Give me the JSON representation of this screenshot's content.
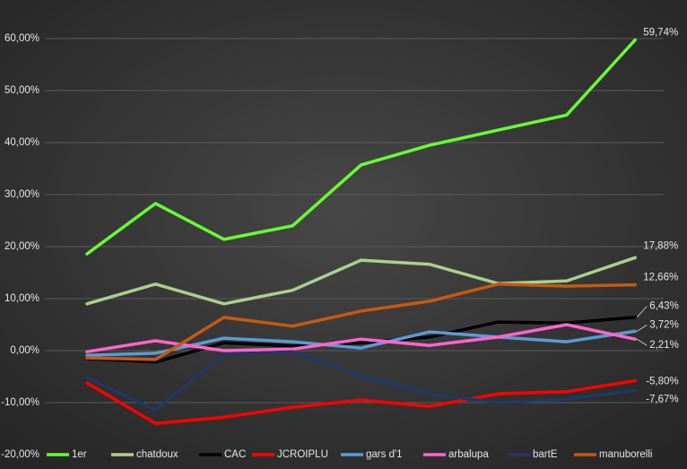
{
  "chart_data": {
    "type": "line",
    "ylim": [
      -20,
      60
    ],
    "yticks": [
      {
        "value": -20,
        "label": "-20,00%"
      },
      {
        "value": -10,
        "label": "-10,00%"
      },
      {
        "value": 0,
        "label": "0,00%"
      },
      {
        "value": 10,
        "label": "10,00%"
      },
      {
        "value": 20,
        "label": "20,00%"
      },
      {
        "value": 30,
        "label": "30,00%"
      },
      {
        "value": 40,
        "label": "40,00%"
      },
      {
        "value": 50,
        "label": "50,00%"
      },
      {
        "value": 60,
        "label": "60,00%"
      }
    ],
    "grid": true,
    "legend": "bottom",
    "series": [
      {
        "name": "1er",
        "color": "#66ff33",
        "values": [
          18.6,
          28.3,
          21.4,
          24.0,
          35.7,
          39.5,
          42.4,
          45.3,
          59.74
        ],
        "value_labels": [
          null,
          null,
          null,
          null,
          null,
          null,
          null,
          null,
          "59,74%"
        ]
      },
      {
        "name": "chatdoux",
        "color": "#a9d18e",
        "values": [
          9.0,
          12.8,
          9.0,
          11.6,
          17.4,
          16.6,
          12.9,
          13.4,
          17.88
        ],
        "value_labels": [
          null,
          null,
          null,
          null,
          null,
          null,
          null,
          null,
          "17,88%"
        ]
      },
      {
        "name": "CAC",
        "color": "#000000",
        "values": [
          -1.5,
          -2.2,
          1.5,
          0.9,
          1.5,
          2.6,
          5.5,
          5.3,
          6.43
        ],
        "value_labels": [
          null,
          null,
          null,
          null,
          null,
          null,
          null,
          null,
          "6,43%"
        ]
      },
      {
        "name": "JCROIPLU",
        "color": "#ff0000",
        "values": [
          -6.2,
          -14.0,
          -12.8,
          -10.9,
          -9.5,
          -10.7,
          -8.3,
          -7.9,
          -5.8
        ],
        "value_labels": [
          null,
          null,
          null,
          null,
          null,
          null,
          null,
          null,
          "-5,80%"
        ]
      },
      {
        "name": "gars d'1",
        "color": "#5b9bd5",
        "values": [
          -0.9,
          -0.5,
          2.4,
          1.7,
          0.5,
          3.6,
          2.6,
          1.7,
          3.72
        ],
        "value_labels": [
          null,
          null,
          null,
          null,
          null,
          null,
          null,
          null,
          "3,72%"
        ]
      },
      {
        "name": "arbalupa",
        "color": "#ff66cc",
        "values": [
          -0.2,
          1.9,
          0.0,
          0.3,
          2.2,
          1.0,
          2.6,
          5.0,
          2.21
        ],
        "value_labels": [
          null,
          null,
          null,
          null,
          null,
          null,
          null,
          null,
          "2,21%"
        ]
      },
      {
        "name": "bartE",
        "color": "#203864",
        "values": [
          -5.2,
          -11.4,
          -0.7,
          -0.2,
          -4.8,
          -8.3,
          -10.0,
          -9.3,
          -7.67
        ],
        "value_labels": [
          null,
          null,
          null,
          null,
          null,
          null,
          null,
          null,
          "-7,67%"
        ]
      },
      {
        "name": "manuborelli",
        "color": "#c55a11",
        "values": [
          -1.4,
          -1.7,
          6.4,
          4.7,
          7.6,
          9.5,
          12.8,
          12.4,
          12.66
        ],
        "value_labels": [
          null,
          null,
          null,
          null,
          null,
          null,
          null,
          null,
          "12,66%"
        ]
      }
    ]
  }
}
